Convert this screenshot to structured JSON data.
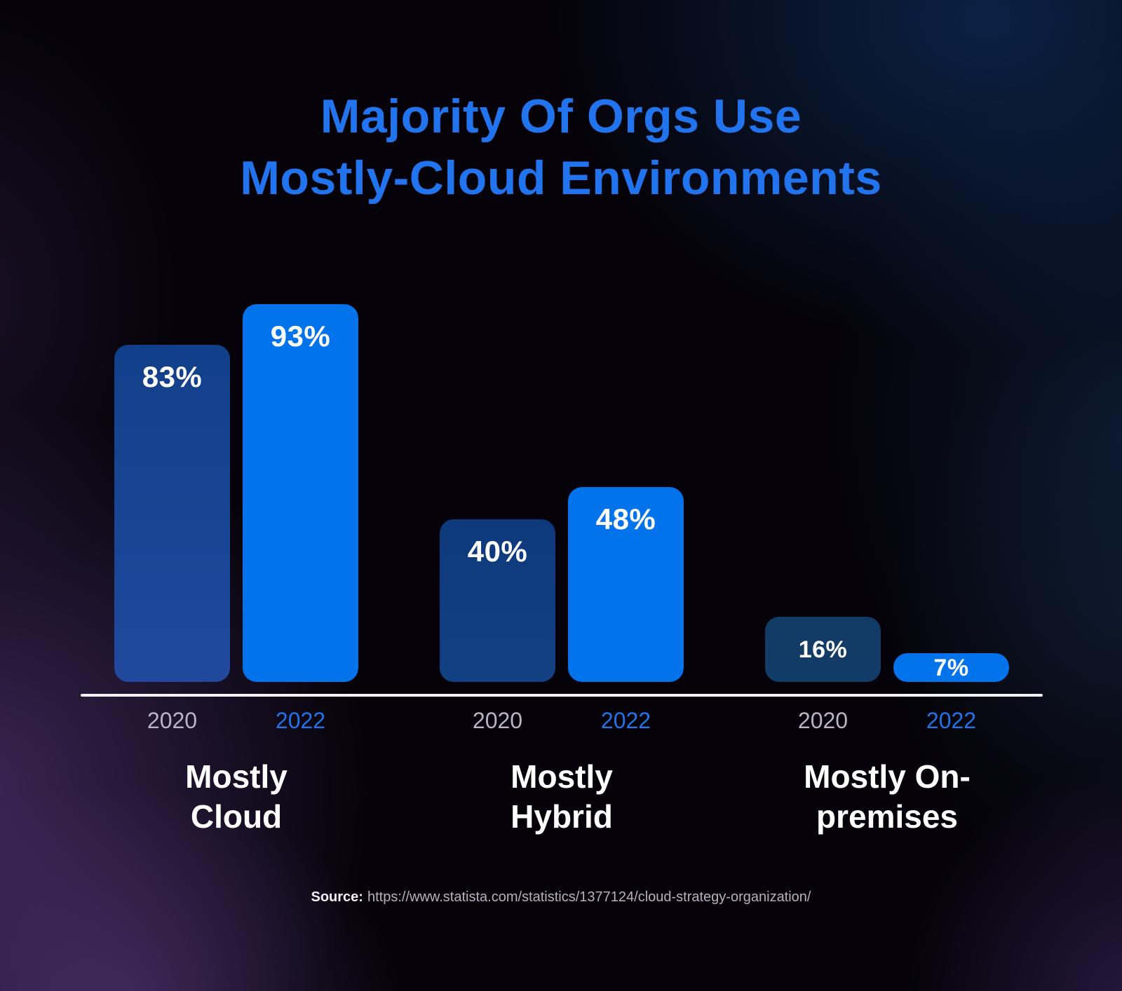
{
  "title": {
    "lines": [
      "Majority Of Orgs Use",
      "Mostly-Cloud Environments"
    ],
    "color": "#2274ee"
  },
  "chart_data": {
    "type": "bar",
    "title": "Majority Of Orgs Use Mostly-Cloud Environments",
    "unit": "%",
    "ylim": [
      0,
      100
    ],
    "grid": false,
    "legend": "none",
    "series_years": [
      "2020",
      "2022"
    ],
    "groups": [
      {
        "label": "Mostly Cloud",
        "label_lines": [
          "Mostly",
          "Cloud"
        ],
        "bars": [
          {
            "year": "2020",
            "value": 83,
            "display": "83%"
          },
          {
            "year": "2022",
            "value": 93,
            "display": "93%"
          }
        ]
      },
      {
        "label": "Mostly Hybrid",
        "label_lines": [
          "Mostly",
          "Hybrid"
        ],
        "bars": [
          {
            "year": "2020",
            "value": 40,
            "display": "40%"
          },
          {
            "year": "2022",
            "value": 48,
            "display": "48%"
          }
        ]
      },
      {
        "label": "Mostly On-premises",
        "label_lines": [
          "Mostly On-",
          "premises"
        ],
        "bars": [
          {
            "year": "2020",
            "value": 16,
            "display": "16%"
          },
          {
            "year": "2022",
            "value": 7,
            "display": "7%"
          }
        ]
      }
    ],
    "colors": {
      "y2020_gradients": [
        [
          "#123f8a",
          "#20499d"
        ],
        [
          "#0e3a7d",
          "#134083"
        ],
        [
          "#113a64",
          "#123c68"
        ]
      ],
      "y2022": "#0373ec",
      "value_label": "#ffffff",
      "axis_line": "#f2f1f4",
      "year_label_2020": "#b9b3c4",
      "year_label_2022": "#2273e8",
      "category_label": "#ffffff"
    }
  },
  "source": {
    "label": "Source:",
    "url": "https://www.statista.com/statistics/1377124/cloud-strategy-organization/"
  }
}
